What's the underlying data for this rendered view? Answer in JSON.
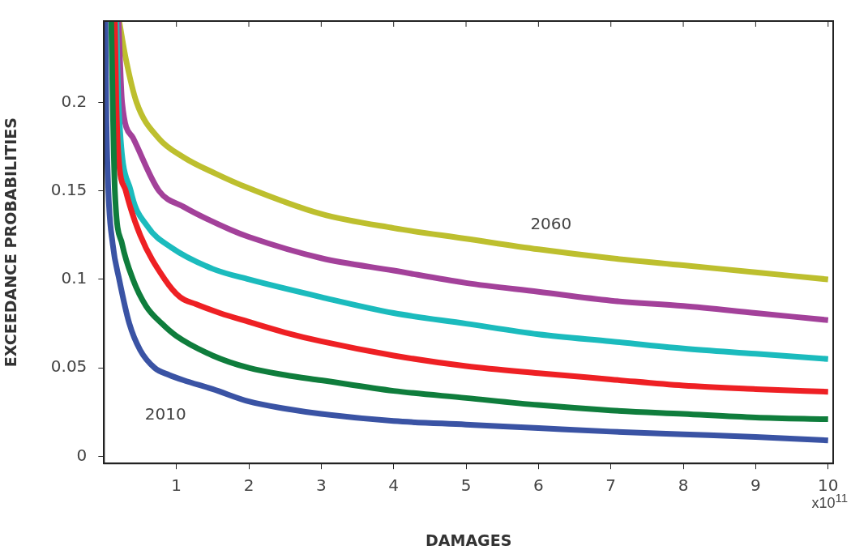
{
  "chart_data": {
    "type": "line",
    "xlabel": "DAMAGES",
    "ylabel": "EXCEEDANCE PROBABILITIES",
    "xlim": [
      0,
      10.07
    ],
    "xticks": [
      1,
      2,
      3,
      4,
      5,
      6,
      7,
      8,
      9,
      10
    ],
    "ylim": [
      -0.004,
      0.246
    ],
    "yticks": [
      0,
      0.05,
      0.1,
      0.15,
      0.2
    ],
    "grid": false,
    "legend": false,
    "marker": "none",
    "line_style": "solid",
    "annotations": [
      "x10$^{11}$"
    ],
    "series": [
      {
        "name": "2010",
        "color": "#3a53a4",
        "x": [
          0.02,
          0.03,
          0.06,
          0.12,
          0.21,
          0.35,
          0.5,
          0.7,
          0.9,
          1.1,
          1.5,
          2,
          2.5,
          3,
          4,
          5,
          6,
          7,
          8,
          9,
          10
        ],
        "values": [
          0.246,
          0.2,
          0.15,
          0.12,
          0.1,
          0.075,
          0.06,
          0.05,
          0.046,
          0.043,
          0.038,
          0.031,
          0.027,
          0.024,
          0.02,
          0.018,
          0.016,
          0.014,
          0.0125,
          0.011,
          0.009
        ]
      },
      {
        "color": "#0f7d3c",
        "x": [
          0.1,
          0.12,
          0.15,
          0.25,
          0.4,
          0.58,
          0.8,
          1,
          1.5,
          2,
          2.5,
          3,
          4,
          5,
          6,
          7,
          8,
          9,
          10
        ],
        "values": [
          0.246,
          0.2,
          0.15,
          0.12,
          0.1,
          0.085,
          0.075,
          0.068,
          0.057,
          0.05,
          0.046,
          0.043,
          0.037,
          0.033,
          0.029,
          0.026,
          0.024,
          0.022,
          0.021
        ]
      },
      {
        "color": "#ee2024",
        "x": [
          0.15,
          0.17,
          0.2,
          0.3,
          0.5,
          0.84,
          1.05,
          1.27,
          1.6,
          2,
          2.5,
          3,
          4,
          5,
          6,
          7,
          8,
          9,
          10
        ],
        "values": [
          0.246,
          0.2,
          0.17,
          0.15,
          0.125,
          0.1,
          0.09,
          0.086,
          0.081,
          0.076,
          0.07,
          0.065,
          0.057,
          0.051,
          0.047,
          0.0435,
          0.04,
          0.038,
          0.0365
        ]
      },
      {
        "color": "#1bbbbd",
        "x": [
          0.17,
          0.2,
          0.37,
          0.6,
          0.93,
          1.5,
          2,
          3,
          4,
          5,
          6,
          7,
          8,
          9,
          10
        ],
        "values": [
          0.246,
          0.2,
          0.15,
          0.13,
          0.118,
          0.106,
          0.1,
          0.09,
          0.081,
          0.075,
          0.069,
          0.065,
          0.061,
          0.058,
          0.055
        ]
      },
      {
        "color": "#a3419a",
        "x": [
          0.2,
          0.25,
          0.4,
          0.76,
          1.1,
          1.75,
          2,
          3,
          4,
          5,
          6,
          7,
          8,
          9,
          10
        ],
        "values": [
          0.246,
          0.2,
          0.18,
          0.15,
          0.141,
          0.128,
          0.124,
          0.112,
          0.105,
          0.098,
          0.093,
          0.088,
          0.085,
          0.081,
          0.077
        ]
      },
      {
        "name": "2060",
        "color": "#bdbf2e",
        "x": [
          0.21,
          0.3,
          0.45,
          0.75,
          1.1,
          1.53,
          1.97,
          3,
          4,
          5,
          6,
          7,
          8,
          9,
          10
        ],
        "values": [
          0.246,
          0.225,
          0.2,
          0.18,
          0.169,
          0.16,
          0.152,
          0.137,
          0.129,
          0.123,
          0.117,
          0.112,
          0.108,
          0.104,
          0.1
        ]
      }
    ]
  }
}
